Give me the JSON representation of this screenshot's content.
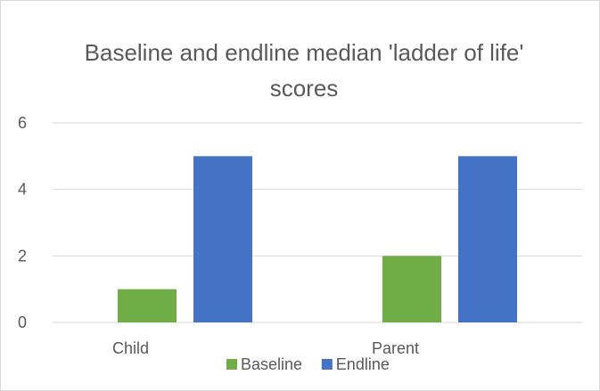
{
  "chart_data": {
    "type": "bar",
    "title": "Baseline and endline median 'ladder of life' scores",
    "categories": [
      "Child",
      "Parent"
    ],
    "series": [
      {
        "name": "Baseline",
        "values": [
          1,
          2
        ],
        "color": "#70ad47"
      },
      {
        "name": "Endline",
        "values": [
          5,
          5
        ],
        "color": "#4472c4"
      }
    ],
    "ylim": [
      0,
      6
    ],
    "yticks": [
      0,
      2,
      4,
      6
    ],
    "grid": true,
    "gridline_color": "#d9d9d9",
    "legend": "bottom"
  }
}
